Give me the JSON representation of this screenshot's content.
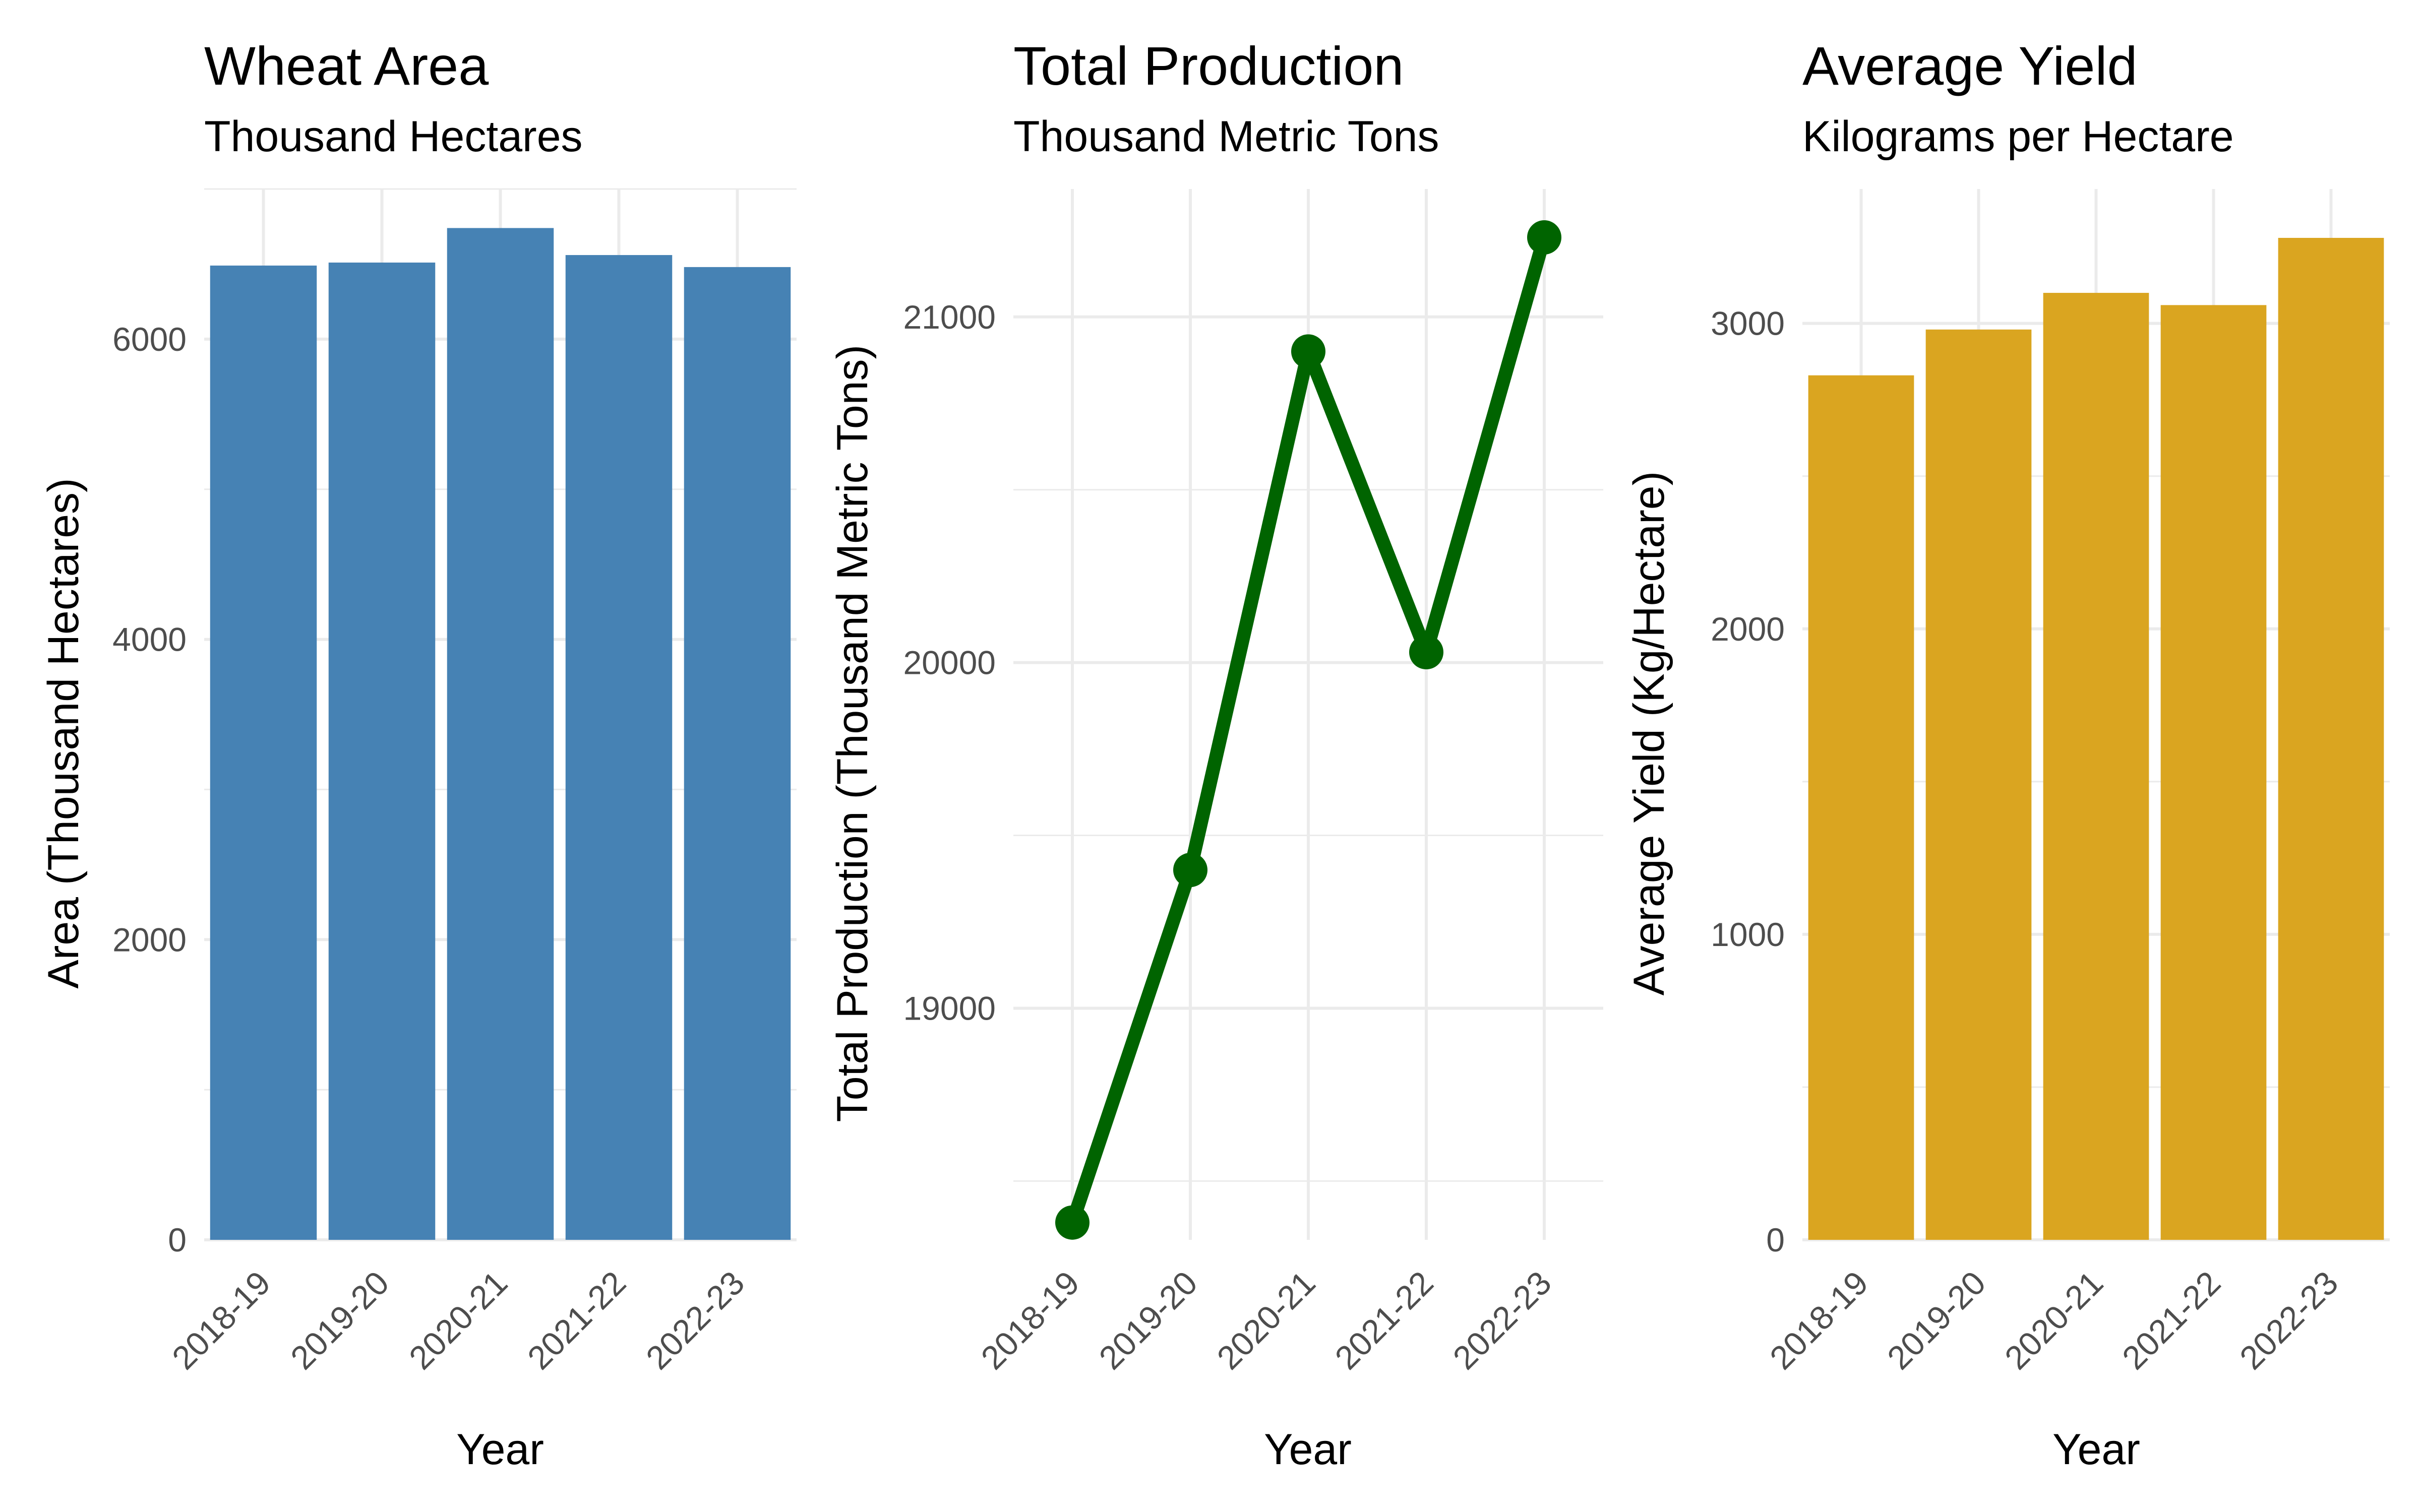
{
  "charts": [
    {
      "title": "Wheat Area",
      "subtitle": "Thousand Hectares",
      "chart_data": {
        "type": "bar",
        "categories": [
          "2018-19",
          "2019-20",
          "2020-21",
          "2021-22",
          "2022-23"
        ],
        "values": [
          6490,
          6510,
          6740,
          6560,
          6480
        ],
        "xlabel": "Year",
        "ylabel": "Area (Thousand Hectares)",
        "ylim": [
          0,
          7000
        ],
        "yticks": [
          0,
          2000,
          4000,
          6000
        ],
        "ytick_labels": [
          "0",
          "2000",
          "4000",
          "6000"
        ],
        "color": "#4682B4",
        "grid": true
      }
    },
    {
      "title": "Total Production",
      "subtitle": "Thousand Metric Tons",
      "chart_data": {
        "type": "line",
        "categories": [
          "2018-19",
          "2019-20",
          "2020-21",
          "2021-22",
          "2022-23"
        ],
        "values": [
          18380,
          19400,
          20900,
          20030,
          21230
        ],
        "xlabel": "Year",
        "ylabel": "Total Production (Thousand Metric Tons)",
        "ylim": [
          18330,
          21370
        ],
        "yticks": [
          19000,
          20000,
          21000
        ],
        "ytick_labels": [
          "19000",
          "20000",
          "21000"
        ],
        "color": "#006400",
        "grid": true
      }
    },
    {
      "title": "Average Yield",
      "subtitle": "Kilograms per Hectare",
      "chart_data": {
        "type": "bar",
        "categories": [
          "2018-19",
          "2019-20",
          "2020-21",
          "2021-22",
          "2022-23"
        ],
        "values": [
          2830,
          2980,
          3100,
          3060,
          3280
        ],
        "xlabel": "Year",
        "ylabel": "Average Yield (Kg/Hectare)",
        "ylim": [
          0,
          3440
        ],
        "yticks": [
          0,
          1000,
          2000,
          3000
        ],
        "ytick_labels": [
          "0",
          "1000",
          "2000",
          "3000"
        ],
        "color": "#DAA520",
        "grid": true
      }
    }
  ]
}
